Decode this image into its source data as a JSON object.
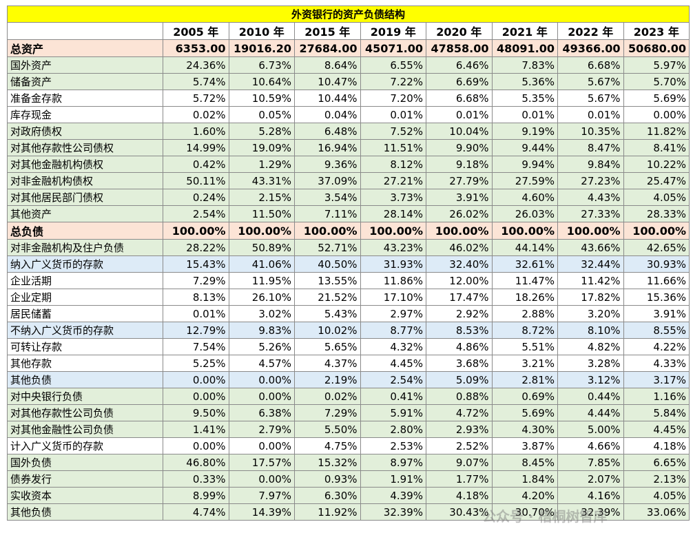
{
  "table": {
    "title": "外资银行的资产负债结构",
    "header": [
      "2005 年",
      "2010 年",
      "2015 年",
      "2019 年",
      "2020 年",
      "2021 年",
      "2022 年",
      "2023 年"
    ],
    "rows": [
      [
        "总资产",
        "6353.00",
        "19016.20",
        "27684.00",
        "45071.00",
        "47858.00",
        "48091.00",
        "49366.00",
        "50680.00"
      ],
      [
        "国外资产",
        "24.36%",
        "6.73%",
        "8.64%",
        "6.55%",
        "6.46%",
        "7.83%",
        "6.68%",
        "5.97%"
      ],
      [
        "储备资产",
        "5.74%",
        "10.64%",
        "10.47%",
        "7.22%",
        "6.69%",
        "5.36%",
        "5.67%",
        "5.70%"
      ],
      [
        "准备金存款",
        "5.72%",
        "10.59%",
        "10.44%",
        "7.20%",
        "6.68%",
        "5.35%",
        "5.67%",
        "5.69%"
      ],
      [
        "库存现金",
        "0.02%",
        "0.05%",
        "0.04%",
        "0.01%",
        "0.01%",
        "0.01%",
        "0.01%",
        "0.00%"
      ],
      [
        "对政府债权",
        "1.60%",
        "5.28%",
        "6.48%",
        "7.52%",
        "10.04%",
        "9.19%",
        "10.35%",
        "11.82%"
      ],
      [
        "对其他存款性公司债权",
        "14.99%",
        "19.09%",
        "16.94%",
        "11.51%",
        "9.90%",
        "9.44%",
        "8.47%",
        "8.41%"
      ],
      [
        "对其他金融机构债权",
        "0.42%",
        "1.29%",
        "9.36%",
        "8.12%",
        "9.18%",
        "9.94%",
        "9.84%",
        "10.22%"
      ],
      [
        "对非金融机构债权",
        "50.11%",
        "43.31%",
        "37.09%",
        "27.21%",
        "27.79%",
        "27.59%",
        "27.23%",
        "25.47%"
      ],
      [
        "对其他居民部门债权",
        "0.24%",
        "2.15%",
        "3.54%",
        "3.73%",
        "3.91%",
        "4.60%",
        "4.43%",
        "4.05%"
      ],
      [
        "其他资产",
        "2.54%",
        "11.50%",
        "7.11%",
        "28.14%",
        "26.02%",
        "26.03%",
        "27.33%",
        "28.33%"
      ],
      [
        "总负债",
        "100.00%",
        "100.00%",
        "100.00%",
        "100.00%",
        "100.00%",
        "100.00%",
        "100.00%",
        "100.00%"
      ],
      [
        "对非金融机构及住户负债",
        "28.22%",
        "50.89%",
        "52.71%",
        "43.23%",
        "46.02%",
        "44.14%",
        "43.66%",
        "42.65%"
      ],
      [
        "纳入广义货币的存款",
        "15.43%",
        "41.06%",
        "40.50%",
        "31.93%",
        "32.40%",
        "32.61%",
        "32.44%",
        "30.93%"
      ],
      [
        "企业活期",
        "7.29%",
        "11.95%",
        "13.55%",
        "11.86%",
        "12.00%",
        "11.47%",
        "11.42%",
        "11.66%"
      ],
      [
        "企业定期",
        "8.13%",
        "26.10%",
        "21.52%",
        "17.10%",
        "17.47%",
        "18.26%",
        "17.82%",
        "15.36%"
      ],
      [
        "居民储蓄",
        "0.01%",
        "3.02%",
        "5.43%",
        "2.97%",
        "2.92%",
        "2.88%",
        "3.20%",
        "3.91%"
      ],
      [
        "不纳入广义货币的存款",
        "12.79%",
        "9.83%",
        "10.02%",
        "8.77%",
        "8.53%",
        "8.72%",
        "8.10%",
        "8.55%"
      ],
      [
        "可转让存款",
        "7.54%",
        "5.26%",
        "5.65%",
        "4.32%",
        "4.86%",
        "5.51%",
        "4.82%",
        "4.22%"
      ],
      [
        "其他存款",
        "5.25%",
        "4.57%",
        "4.37%",
        "4.45%",
        "3.68%",
        "3.21%",
        "3.28%",
        "4.33%"
      ],
      [
        "其他负债",
        "0.00%",
        "0.00%",
        "2.19%",
        "2.54%",
        "5.09%",
        "2.81%",
        "3.12%",
        "3.17%"
      ],
      [
        "对中央银行负债",
        "0.00%",
        "0.00%",
        "0.02%",
        "0.41%",
        "0.88%",
        "0.69%",
        "0.44%",
        "1.16%"
      ],
      [
        "对其他存款性公司负债",
        "9.50%",
        "6.38%",
        "7.29%",
        "5.91%",
        "4.72%",
        "5.69%",
        "4.44%",
        "5.84%"
      ],
      [
        "对其他金融性公司负债",
        "1.41%",
        "2.79%",
        "5.50%",
        "2.80%",
        "2.93%",
        "4.30%",
        "5.00%",
        "4.45%"
      ],
      [
        "计入广义货币的存款",
        "0.00%",
        "0.00%",
        "4.75%",
        "2.53%",
        "2.52%",
        "3.87%",
        "4.66%",
        "4.18%"
      ],
      [
        "国外负债",
        "46.80%",
        "17.57%",
        "15.32%",
        "8.97%",
        "9.07%",
        "8.45%",
        "7.85%",
        "6.65%"
      ],
      [
        "债券发行",
        "0.33%",
        "0.00%",
        "0.93%",
        "1.91%",
        "1.77%",
        "1.84%",
        "2.07%",
        "2.13%"
      ],
      [
        "实收资本",
        "8.99%",
        "7.97%",
        "6.30%",
        "4.39%",
        "4.18%",
        "4.20%",
        "4.16%",
        "4.05%"
      ],
      [
        "其他负债",
        "4.74%",
        "14.39%",
        "11.92%",
        "32.39%",
        "30.43%",
        "30.70%",
        "32.39%",
        "33.06%"
      ]
    ]
  },
  "watermark": "公众号 · 梧桐树智库"
}
